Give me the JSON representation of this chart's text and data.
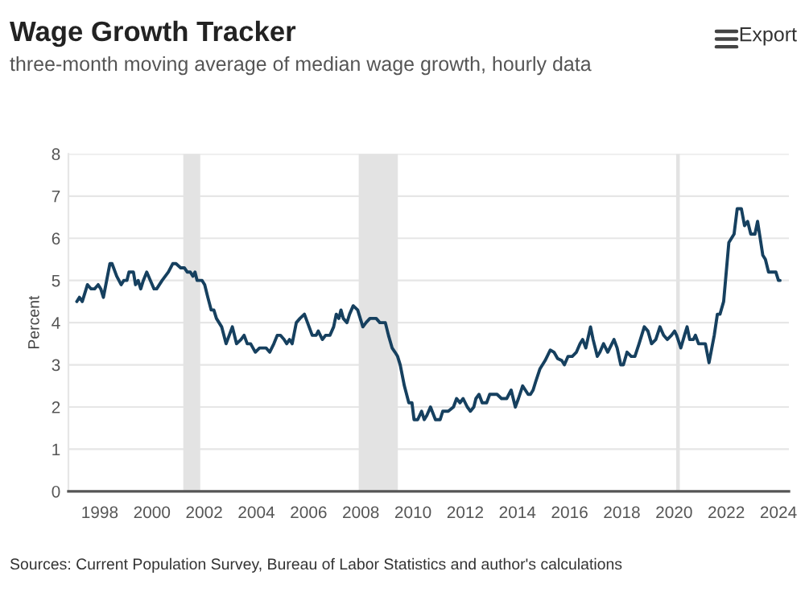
{
  "chart_data": {
    "type": "line",
    "title": "Wage Growth Tracker",
    "subtitle": "three-month moving average of median wage growth, hourly data",
    "ylabel": "Percent",
    "annotations": [
      "Export",
      "Sources: Current Population Survey, Bureau of Labor Statistics and author's calculations"
    ],
    "xlim": [
      1996.8,
      2024.4
    ],
    "xticks": [
      1998,
      2000,
      2002,
      2004,
      2006,
      2008,
      2010,
      2012,
      2014,
      2016,
      2018,
      2020,
      2022,
      2024
    ],
    "ylim": [
      0,
      8
    ],
    "yticks": [
      0,
      1,
      2,
      3,
      4,
      5,
      6,
      7,
      8
    ],
    "grid": "y",
    "legend": false,
    "marker": "none",
    "line_style": "solid",
    "bands": [
      {
        "axis": "x",
        "from": 2001.2,
        "to": 2001.85,
        "color": "#e3e3e3"
      },
      {
        "axis": "x",
        "from": 2007.92,
        "to": 2009.42,
        "color": "#e3e3e3"
      },
      {
        "axis": "x",
        "from": 2020.08,
        "to": 2020.22,
        "color": "#e3e3e3"
      }
    ],
    "series": [
      {
        "color": "#16405f",
        "x": [
          1997.12,
          1997.22,
          1997.33,
          1997.53,
          1997.67,
          1997.8,
          1997.94,
          1998.04,
          1998.14,
          1998.39,
          1998.47,
          1998.65,
          1998.82,
          1998.92,
          1999.04,
          1999.12,
          1999.29,
          1999.37,
          1999.47,
          1999.57,
          1999.67,
          1999.8,
          1999.94,
          2000.08,
          2000.18,
          2000.39,
          2000.63,
          2000.8,
          2000.92,
          2001.1,
          2001.24,
          2001.35,
          2001.47,
          2001.57,
          2001.65,
          2001.73,
          2001.92,
          2002.02,
          2002.14,
          2002.27,
          2002.37,
          2002.47,
          2002.67,
          2002.84,
          2003.08,
          2003.24,
          2003.41,
          2003.53,
          2003.65,
          2003.78,
          2003.96,
          2004.12,
          2004.37,
          2004.51,
          2004.67,
          2004.8,
          2004.92,
          2005.06,
          2005.16,
          2005.27,
          2005.37,
          2005.53,
          2005.67,
          2005.84,
          2005.96,
          2006.14,
          2006.29,
          2006.37,
          2006.53,
          2006.65,
          2006.82,
          2006.96,
          2007.06,
          2007.16,
          2007.24,
          2007.33,
          2007.47,
          2007.57,
          2007.71,
          2007.88,
          2008.08,
          2008.2,
          2008.35,
          2008.59,
          2008.73,
          2008.94,
          2009.06,
          2009.2,
          2009.31,
          2009.41,
          2009.51,
          2009.67,
          2009.84,
          2009.96,
          2010.04,
          2010.18,
          2010.33,
          2010.43,
          2010.53,
          2010.67,
          2010.86,
          2011.04,
          2011.14,
          2011.35,
          2011.55,
          2011.67,
          2011.8,
          2011.92,
          2012.08,
          2012.2,
          2012.33,
          2012.41,
          2012.53,
          2012.65,
          2012.82,
          2012.94,
          2013.22,
          2013.39,
          2013.59,
          2013.76,
          2013.92,
          2014.04,
          2014.2,
          2014.41,
          2014.5,
          2014.6,
          2014.7,
          2014.86,
          2015.06,
          2015.26,
          2015.4,
          2015.54,
          2015.7,
          2015.8,
          2015.94,
          2016.1,
          2016.26,
          2016.4,
          2016.5,
          2016.62,
          2016.8,
          2016.9,
          2017.06,
          2017.16,
          2017.3,
          2017.46,
          2017.54,
          2017.7,
          2017.82,
          2017.96,
          2018.06,
          2018.2,
          2018.36,
          2018.5,
          2018.66,
          2018.86,
          2019.0,
          2019.14,
          2019.3,
          2019.46,
          2019.6,
          2019.74,
          2019.9,
          2020.02,
          2020.1,
          2020.26,
          2020.4,
          2020.5,
          2020.6,
          2020.74,
          2020.82,
          2020.94,
          2021.2,
          2021.34,
          2021.54,
          2021.66,
          2021.76,
          2021.9,
          2022.1,
          2022.2,
          2022.3,
          2022.42,
          2022.58,
          2022.7,
          2022.82,
          2022.94,
          2023.1,
          2023.2,
          2023.3,
          2023.4,
          2023.5,
          2023.62,
          2023.76,
          2023.9,
          2024.0,
          2024.06
        ],
        "values": [
          4.5,
          4.6,
          4.5,
          4.9,
          4.8,
          4.8,
          4.9,
          4.8,
          4.6,
          5.4,
          5.4,
          5.1,
          4.9,
          5.0,
          5.0,
          5.2,
          5.2,
          4.9,
          5.0,
          4.8,
          5.0,
          5.2,
          5.0,
          4.8,
          4.8,
          5.0,
          5.2,
          5.4,
          5.4,
          5.3,
          5.3,
          5.2,
          5.2,
          5.1,
          5.2,
          5.0,
          5.0,
          4.9,
          4.6,
          4.3,
          4.3,
          4.1,
          3.9,
          3.5,
          3.9,
          3.5,
          3.6,
          3.7,
          3.5,
          3.5,
          3.3,
          3.4,
          3.4,
          3.3,
          3.5,
          3.7,
          3.7,
          3.6,
          3.5,
          3.6,
          3.5,
          4.0,
          4.1,
          4.2,
          4.0,
          3.7,
          3.7,
          3.8,
          3.6,
          3.7,
          3.7,
          3.9,
          4.2,
          4.1,
          4.3,
          4.1,
          4.0,
          4.2,
          4.4,
          4.3,
          3.9,
          4.0,
          4.1,
          4.1,
          4.0,
          4.0,
          3.7,
          3.4,
          3.3,
          3.2,
          3.0,
          2.5,
          2.1,
          2.1,
          1.7,
          1.7,
          1.9,
          1.7,
          1.8,
          2.0,
          1.7,
          1.7,
          1.9,
          1.9,
          2.0,
          2.2,
          2.1,
          2.2,
          2.0,
          1.9,
          2.0,
          2.2,
          2.3,
          2.1,
          2.1,
          2.3,
          2.3,
          2.2,
          2.2,
          2.4,
          2.0,
          2.2,
          2.5,
          2.3,
          2.3,
          2.4,
          2.6,
          2.9,
          3.1,
          3.35,
          3.3,
          3.15,
          3.1,
          3.0,
          3.2,
          3.2,
          3.3,
          3.5,
          3.6,
          3.4,
          3.9,
          3.6,
          3.2,
          3.3,
          3.5,
          3.3,
          3.4,
          3.6,
          3.4,
          3.0,
          3.0,
          3.3,
          3.2,
          3.2,
          3.5,
          3.9,
          3.8,
          3.5,
          3.6,
          3.9,
          3.7,
          3.6,
          3.7,
          3.8,
          3.7,
          3.4,
          3.7,
          3.9,
          3.6,
          3.6,
          3.7,
          3.5,
          3.5,
          3.05,
          3.7,
          4.2,
          4.2,
          4.5,
          5.9,
          6.0,
          6.1,
          6.7,
          6.7,
          6.3,
          6.4,
          6.1,
          6.1,
          6.4,
          6.0,
          5.6,
          5.5,
          5.2,
          5.2,
          5.2,
          5.0,
          5.0
        ]
      }
    ]
  }
}
